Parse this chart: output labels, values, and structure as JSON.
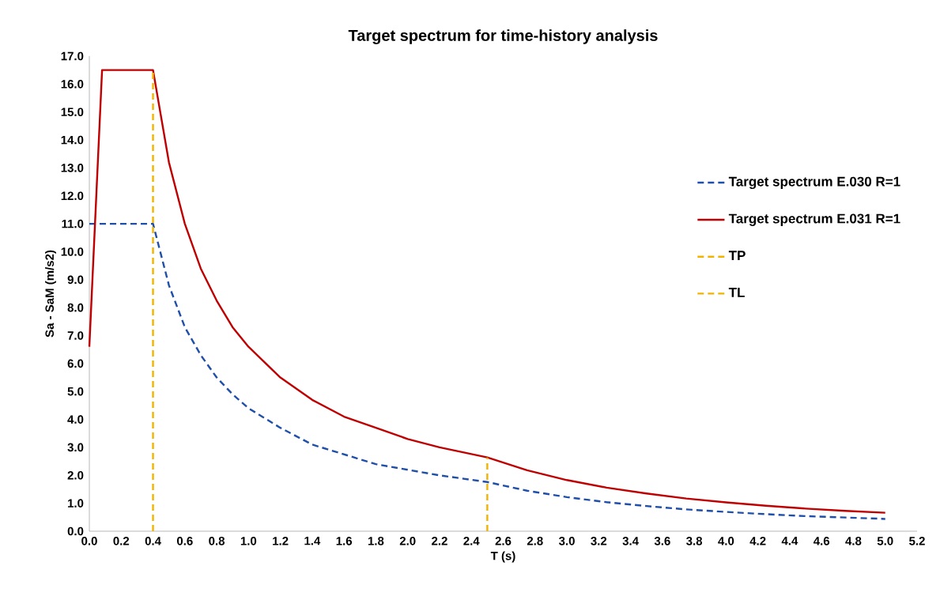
{
  "chart_data": {
    "type": "line",
    "title": "Target spectrum for time-history analysis",
    "xlabel": "T (s)",
    "ylabel": "Sa - SaM (m/s2)",
    "series": [
      {
        "name": "Target spectrum E.030 R=1",
        "color": "#1f4fa8",
        "line_style": "dashed",
        "x": [
          0,
          0.4,
          0.5,
          0.6,
          0.7,
          0.8,
          0.9,
          1.0,
          1.2,
          1.4,
          1.6,
          1.8,
          2.0,
          2.2,
          2.5,
          2.75,
          3.0,
          3.25,
          3.5,
          3.75,
          4.0,
          4.25,
          4.5,
          4.75,
          5.0
        ],
        "values": [
          11.0,
          11.0,
          8.8,
          7.3,
          6.3,
          5.5,
          4.9,
          4.4,
          3.7,
          3.1,
          2.75,
          2.4,
          2.2,
          2.0,
          1.76,
          1.45,
          1.22,
          1.04,
          0.9,
          0.78,
          0.69,
          0.61,
          0.54,
          0.49,
          0.44
        ]
      },
      {
        "name": "Target spectrum E.031 R=1",
        "color": "#c00000",
        "line_style": "solid",
        "x": [
          0,
          0.08,
          0.4,
          0.5,
          0.6,
          0.7,
          0.8,
          0.9,
          1.0,
          1.2,
          1.4,
          1.6,
          1.8,
          2.0,
          2.2,
          2.5,
          2.75,
          3.0,
          3.25,
          3.5,
          3.75,
          4.0,
          4.25,
          4.5,
          4.75,
          5.0
        ],
        "values": [
          6.6,
          16.5,
          16.5,
          13.2,
          11.0,
          9.4,
          8.25,
          7.3,
          6.6,
          5.5,
          4.7,
          4.1,
          3.7,
          3.3,
          3.0,
          2.64,
          2.18,
          1.83,
          1.56,
          1.35,
          1.17,
          1.03,
          0.91,
          0.81,
          0.73,
          0.66
        ]
      },
      {
        "name": "TP",
        "color": "#f0b400",
        "line_style": "dashed",
        "x": [
          0.4,
          0.4
        ],
        "values": [
          0,
          16.5
        ]
      },
      {
        "name": "TL",
        "color": "#f0b400",
        "line_style": "dashed",
        "x": [
          2.5,
          2.5
        ],
        "values": [
          0,
          2.64
        ]
      }
    ],
    "xlim": [
      0,
      5.2
    ],
    "ylim": [
      0,
      17
    ],
    "xticks": [
      {
        "value": 0,
        "label": "0.0"
      },
      {
        "value": 0.2,
        "label": "0.2"
      },
      {
        "value": 0.4,
        "label": "0.4"
      },
      {
        "value": 0.6,
        "label": "0.6"
      },
      {
        "value": 0.8,
        "label": "0.8"
      },
      {
        "value": 1,
        "label": "1.0"
      },
      {
        "value": 1.2,
        "label": "1.2"
      },
      {
        "value": 1.4,
        "label": "1.4"
      },
      {
        "value": 1.6,
        "label": "1.6"
      },
      {
        "value": 1.8,
        "label": "1.8"
      },
      {
        "value": 2,
        "label": "2.0"
      },
      {
        "value": 2.2,
        "label": "2.2"
      },
      {
        "value": 2.4,
        "label": "2.4"
      },
      {
        "value": 2.6,
        "label": "2.6"
      },
      {
        "value": 2.8,
        "label": "2.8"
      },
      {
        "value": 3,
        "label": "3.0"
      },
      {
        "value": 3.2,
        "label": "3.2"
      },
      {
        "value": 3.4,
        "label": "3.4"
      },
      {
        "value": 3.6,
        "label": "3.6"
      },
      {
        "value": 3.8,
        "label": "3.8"
      },
      {
        "value": 4,
        "label": "4.0"
      },
      {
        "value": 4.2,
        "label": "4.2"
      },
      {
        "value": 4.4,
        "label": "4.4"
      },
      {
        "value": 4.6,
        "label": "4.6"
      },
      {
        "value": 4.8,
        "label": "4.8"
      },
      {
        "value": 5,
        "label": "5.0"
      },
      {
        "value": 5.2,
        "label": "5.2"
      }
    ],
    "yticks": [
      {
        "value": 0,
        "label": "0.0"
      },
      {
        "value": 1,
        "label": "1.0"
      },
      {
        "value": 2,
        "label": "2.0"
      },
      {
        "value": 3,
        "label": "3.0"
      },
      {
        "value": 4,
        "label": "4.0"
      },
      {
        "value": 5,
        "label": "5.0"
      },
      {
        "value": 6,
        "label": "6.0"
      },
      {
        "value": 7,
        "label": "7.0"
      },
      {
        "value": 8,
        "label": "8.0"
      },
      {
        "value": 9,
        "label": "9.0"
      },
      {
        "value": 10,
        "label": "10.0"
      },
      {
        "value": 11,
        "label": "11.0"
      },
      {
        "value": 12,
        "label": "12.0"
      },
      {
        "value": 13,
        "label": "13.0"
      },
      {
        "value": 14,
        "label": "14.0"
      },
      {
        "value": 15,
        "label": "15.0"
      },
      {
        "value": 16,
        "label": "16.0"
      },
      {
        "value": 17,
        "label": "17.0"
      }
    ],
    "grid": false,
    "legend": "right"
  }
}
